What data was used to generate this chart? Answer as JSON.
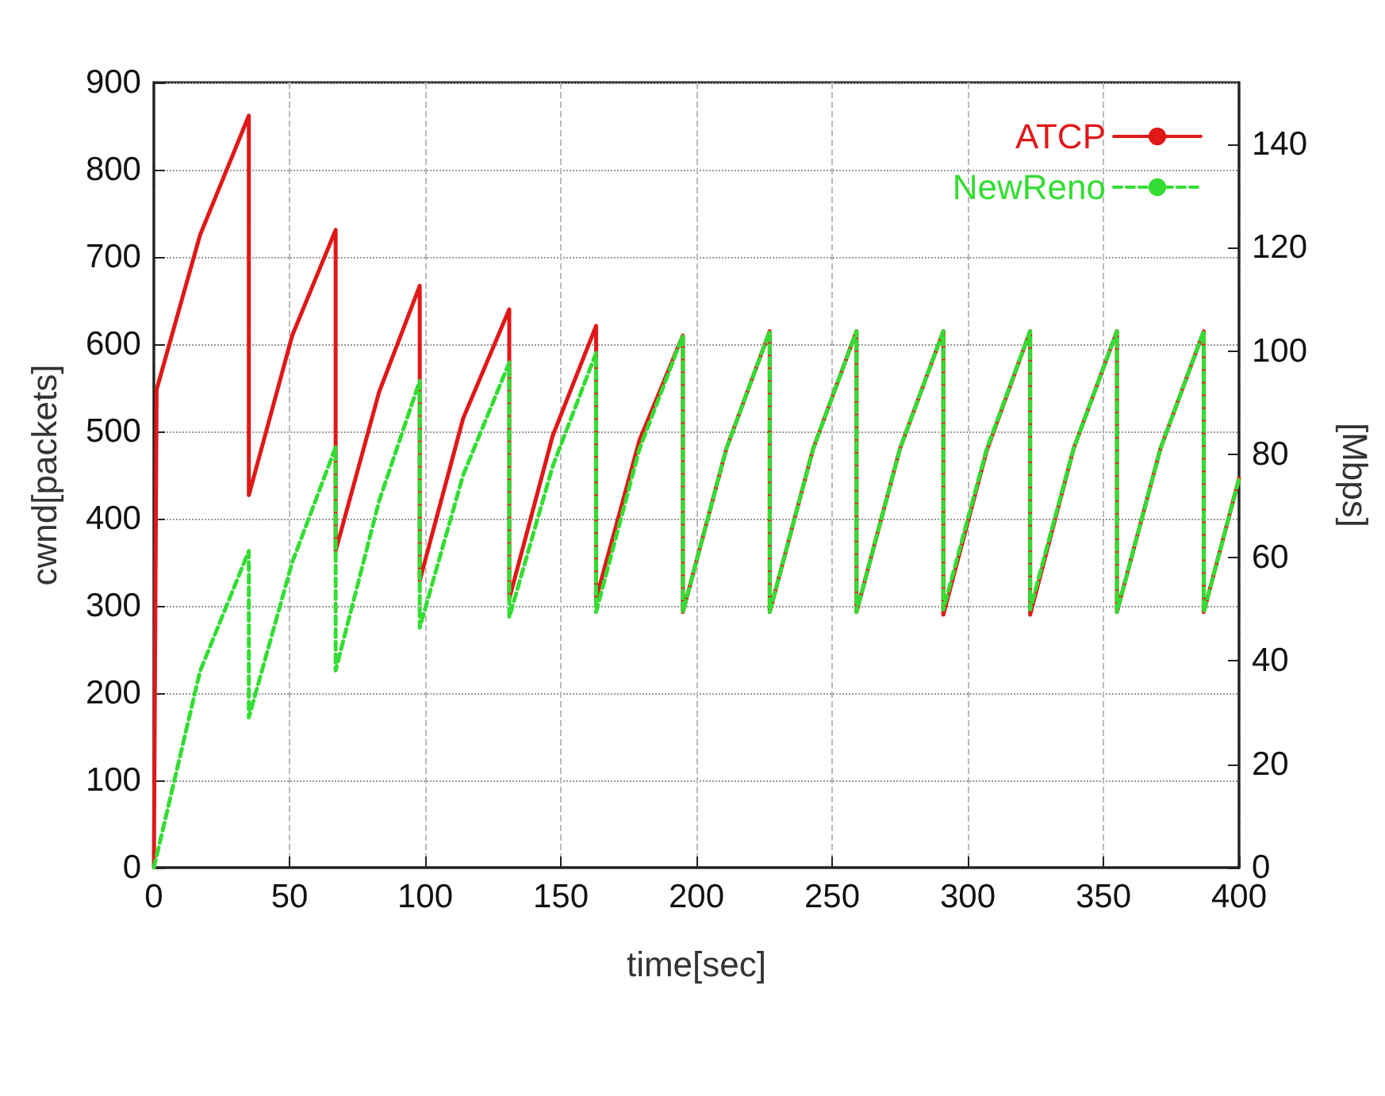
{
  "chart_data": {
    "type": "line",
    "xlabel": "time[sec]",
    "ylabel": "cwnd[packets]",
    "y2label": "[Mbps]",
    "xlim": [
      0,
      400
    ],
    "xticks": [
      0,
      50,
      100,
      150,
      200,
      250,
      300,
      350,
      400
    ],
    "ylim": [
      0,
      900
    ],
    "yticks": [
      0,
      100,
      200,
      300,
      400,
      500,
      600,
      700,
      800,
      900
    ],
    "y2lim": [
      0,
      152
    ],
    "y2ticks": [
      0,
      20,
      40,
      60,
      80,
      100,
      120,
      140
    ],
    "grid": true,
    "legend": "top right",
    "marker": "none",
    "series": [
      {
        "name": "ATCP",
        "color": "#e01818",
        "line_style": "solid",
        "x": [
          0,
          1,
          17,
          35,
          35,
          51,
          67,
          67,
          83,
          98,
          98,
          114,
          131,
          131,
          147,
          163,
          163,
          179,
          195,
          195,
          211,
          227,
          227,
          243,
          259,
          259,
          275,
          291,
          291,
          307,
          323,
          323,
          339,
          355,
          355,
          371,
          387,
          387,
          400
        ],
        "values": [
          0,
          548,
          725,
          862,
          427,
          610,
          731,
          363,
          545,
          667,
          329,
          515,
          640,
          308,
          495,
          621,
          308,
          490,
          610,
          293,
          480,
          615,
          293,
          480,
          615,
          293,
          480,
          615,
          290,
          478,
          615,
          290,
          480,
          615,
          293,
          480,
          615,
          293,
          446
        ]
      },
      {
        "name": "NewReno",
        "color": "#33dd33",
        "line_style": "dashed",
        "x": [
          0,
          17,
          35,
          35,
          51,
          67,
          67,
          83,
          98,
          98,
          114,
          131,
          131,
          147,
          163,
          163,
          179,
          195,
          195,
          211,
          227,
          227,
          243,
          259,
          259,
          275,
          291,
          291,
          307,
          323,
          323,
          339,
          355,
          355,
          371,
          387,
          387,
          400
        ],
        "values": [
          0,
          225,
          363,
          172,
          350,
          482,
          226,
          420,
          558,
          275,
          450,
          579,
          287,
          460,
          590,
          293,
          480,
          610,
          293,
          480,
          615,
          293,
          480,
          615,
          293,
          480,
          615,
          296,
          480,
          615,
          296,
          480,
          615,
          293,
          480,
          615,
          293,
          446
        ]
      }
    ]
  }
}
